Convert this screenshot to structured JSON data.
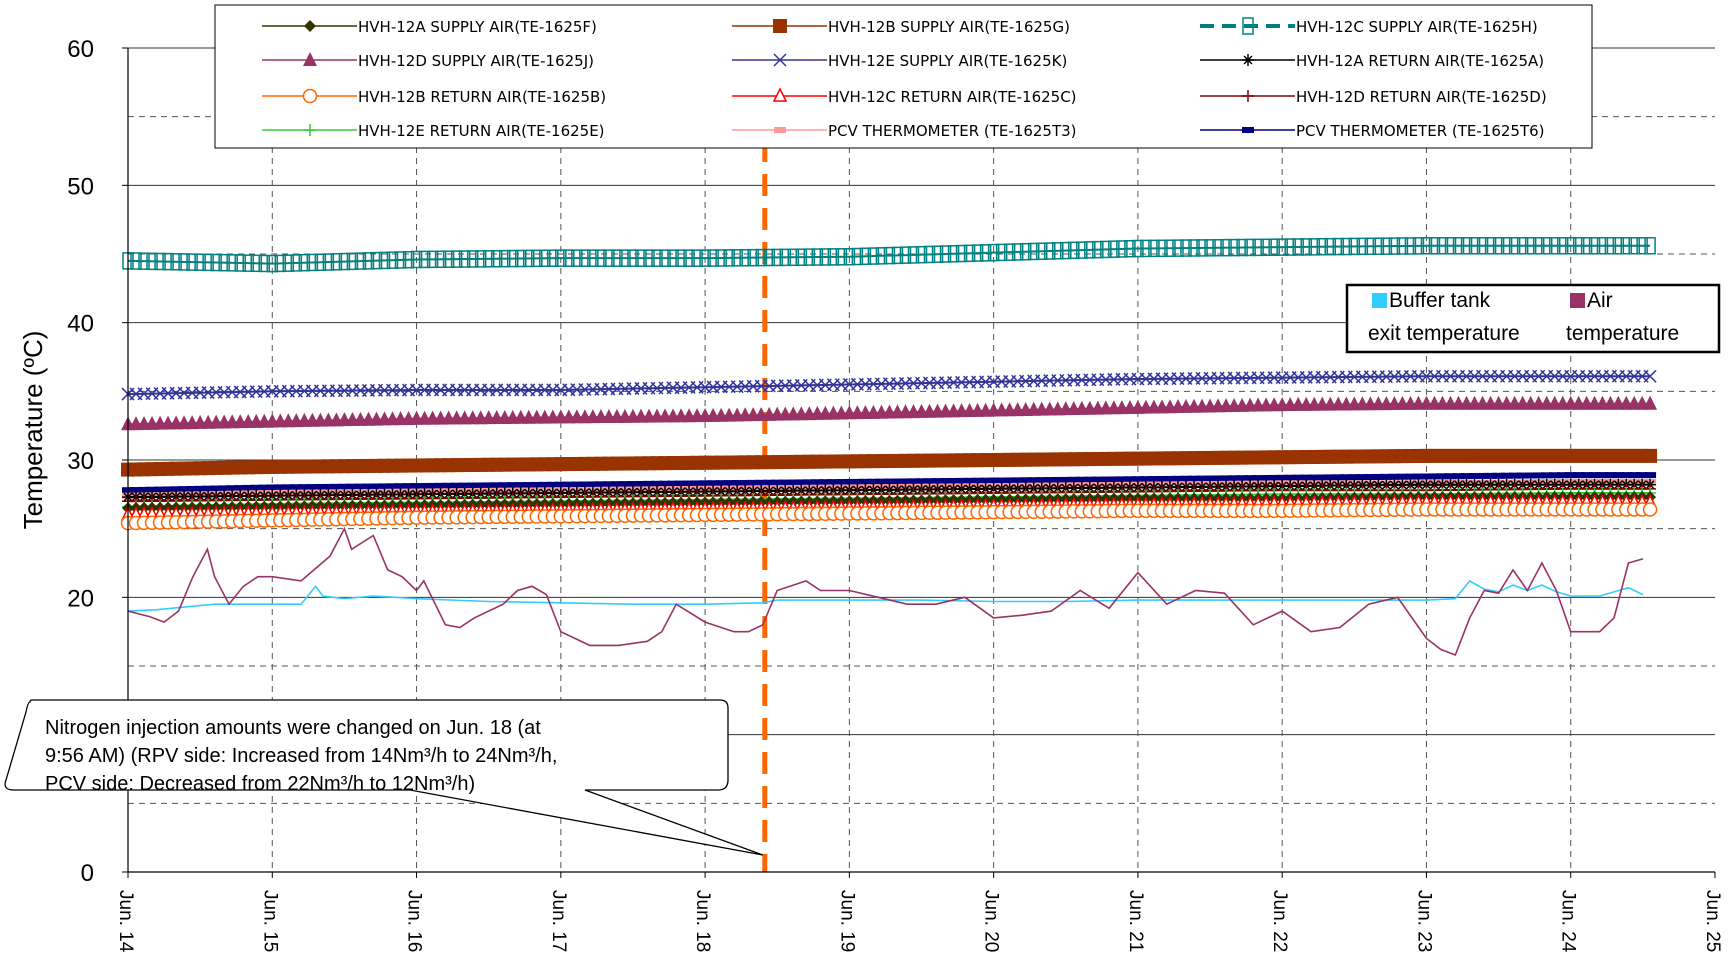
{
  "chart_data": {
    "type": "line",
    "ylabel": "Temperature (ºC)",
    "ylim": [
      0,
      60
    ],
    "y_major_ticks": [
      0,
      10,
      20,
      30,
      40,
      50,
      60
    ],
    "y_tick_labels": [
      "0",
      "",
      "20",
      "30",
      "40",
      "50",
      "60"
    ],
    "xlim": [
      "Jun. 14",
      "Jun. 25"
    ],
    "x_tick_labels": [
      "Jun. 14",
      "Jun. 15",
      "Jun. 16",
      "Jun. 17",
      "Jun. 18",
      "Jun. 19",
      "Jun. 20",
      "Jun. 21",
      "Jun. 22",
      "Jun. 23",
      "Jun. 24",
      "Jun. 25"
    ],
    "grid": {
      "major_y": "solid",
      "minor_y": "dashed",
      "x": "dashed"
    },
    "event_line": {
      "date": "Jun. 18 9:56",
      "color": "#ff6600",
      "style": "dashed"
    },
    "legend": {
      "placement": "top",
      "entries": [
        {
          "label": "HVH-12A SUPPLY AIR(TE-1625F)",
          "color": "#333300",
          "marker": "diamond"
        },
        {
          "label": "HVH-12B SUPPLY AIR(TE-1625G)",
          "color": "#993300",
          "marker": "square"
        },
        {
          "label": "HVH-12C SUPPLY AIR(TE-1625H)",
          "color": "#008080",
          "marker": "open-square",
          "dashed": true
        },
        {
          "label": "HVH-12D SUPPLY AIR(TE-1625J)",
          "color": "#993366",
          "marker": "triangle"
        },
        {
          "label": "HVH-12E SUPPLY AIR(TE-1625K)",
          "color": "#333399",
          "marker": "x"
        },
        {
          "label": "HVH-12A RETURN AIR(TE-1625A)",
          "color": "#000000",
          "marker": "star"
        },
        {
          "label": "HVH-12B RETURN AIR(TE-1625B)",
          "color": "#ff6600",
          "marker": "open-circle"
        },
        {
          "label": "HVH-12C RETURN AIR(TE-1625C)",
          "color": "#ff0000",
          "marker": "open-triangle"
        },
        {
          "label": "HVH-12D RETURN AIR(TE-1625D)",
          "color": "#800000",
          "marker": "plus"
        },
        {
          "label": "HVH-12E RETURN AIR(TE-1625E)",
          "color": "#33cc33",
          "marker": "plus"
        },
        {
          "label": "PCV THERMOMETER (TE-1625T3)",
          "color": "#ff9999",
          "marker": "dash"
        },
        {
          "label": "PCV THERMOMETER (TE-1625T6)",
          "color": "#000080",
          "marker": "dash"
        }
      ]
    },
    "legend2": {
      "placement": "right",
      "entries": [
        {
          "label_line1": "Buffer tank",
          "label_line2": "exit temperature",
          "color": "#33ccff"
        },
        {
          "label_line1": "Air",
          "label_line2": "temperature",
          "color": "#993366"
        }
      ]
    },
    "series": [
      {
        "name": "HVH-12C SUPPLY AIR(TE-1625H)",
        "color": "#008080",
        "x": [
          14.0,
          15.0,
          16.0,
          17.0,
          18.0,
          19.0,
          20.0,
          21.0,
          22.0,
          23.0,
          24.0,
          24.55
        ],
        "y": [
          44.5,
          44.3,
          44.6,
          44.7,
          44.7,
          44.8,
          45.1,
          45.4,
          45.5,
          45.6,
          45.6,
          45.6
        ]
      },
      {
        "name": "HVH-12E SUPPLY AIR(TE-1625K)",
        "color": "#333399",
        "x": [
          14.0,
          15.0,
          16.0,
          17.0,
          18.0,
          19.0,
          20.0,
          21.0,
          22.0,
          23.0,
          24.0,
          24.55
        ],
        "y": [
          34.8,
          35.0,
          35.1,
          35.1,
          35.3,
          35.5,
          35.7,
          35.9,
          36.0,
          36.1,
          36.1,
          36.1
        ]
      },
      {
        "name": "HVH-12D SUPPLY AIR(TE-1625J)",
        "color": "#993366",
        "x": [
          14.0,
          15.0,
          16.0,
          17.0,
          18.0,
          19.0,
          20.0,
          21.0,
          22.0,
          23.0,
          24.0,
          24.55
        ],
        "y": [
          32.6,
          32.8,
          33.0,
          33.1,
          33.2,
          33.4,
          33.6,
          33.8,
          34.0,
          34.1,
          34.1,
          34.1
        ]
      },
      {
        "name": "HVH-12B SUPPLY AIR(TE-1625G)",
        "color": "#993300",
        "x": [
          14.0,
          15.0,
          16.0,
          17.0,
          18.0,
          19.0,
          20.0,
          21.0,
          22.0,
          23.0,
          24.0,
          24.55
        ],
        "y": [
          29.3,
          29.5,
          29.6,
          29.7,
          29.8,
          29.9,
          30.0,
          30.1,
          30.2,
          30.3,
          30.3,
          30.3
        ]
      },
      {
        "name": "PCV THERMOMETER (TE-1625T6)",
        "color": "#000080",
        "x": [
          14.0,
          15.0,
          16.0,
          17.0,
          18.0,
          19.0,
          20.0,
          21.0,
          22.0,
          23.0,
          24.0,
          24.55
        ],
        "y": [
          27.8,
          28.0,
          28.1,
          28.2,
          28.3,
          28.4,
          28.5,
          28.6,
          28.7,
          28.8,
          28.9,
          28.9
        ]
      },
      {
        "name": "PCV THERMOMETER (TE-1625T3)",
        "color": "#ff9999",
        "x": [
          14.0,
          15.0,
          16.0,
          17.0,
          18.0,
          19.0,
          20.0,
          21.0,
          22.0,
          23.0,
          24.0,
          24.55
        ],
        "y": [
          27.4,
          27.6,
          27.7,
          27.8,
          27.9,
          28.0,
          28.1,
          28.2,
          28.3,
          28.3,
          28.4,
          28.4
        ]
      },
      {
        "name": "HVH-12A RETURN AIR(TE-1625A)",
        "color": "#000000",
        "x": [
          14.0,
          15.0,
          16.0,
          17.0,
          18.0,
          19.0,
          20.0,
          21.0,
          22.0,
          23.0,
          24.0,
          24.55
        ],
        "y": [
          27.3,
          27.4,
          27.5,
          27.6,
          27.7,
          27.8,
          27.9,
          28.0,
          28.1,
          28.2,
          28.2,
          28.2
        ]
      },
      {
        "name": "HVH-12D RETURN AIR(TE-1625D)",
        "color": "#800000",
        "x": [
          14.0,
          15.0,
          16.0,
          17.0,
          18.0,
          19.0,
          20.0,
          21.0,
          22.0,
          23.0,
          24.0,
          24.55
        ],
        "y": [
          27.0,
          27.1,
          27.2,
          27.3,
          27.4,
          27.5,
          27.6,
          27.7,
          27.8,
          27.8,
          27.9,
          27.9
        ]
      },
      {
        "name": "HVH-12E RETURN AIR(TE-1625E)",
        "color": "#33cc33",
        "x": [
          14.0,
          15.0,
          16.0,
          17.0,
          18.0,
          19.0,
          20.0,
          21.0,
          22.0,
          23.0,
          24.0,
          24.55
        ],
        "y": [
          26.6,
          26.8,
          26.9,
          27.0,
          27.1,
          27.2,
          27.3,
          27.4,
          27.5,
          27.5,
          27.6,
          27.6
        ]
      },
      {
        "name": "HVH-12A SUPPLY AIR(TE-1625F)",
        "color": "#333300",
        "x": [
          14.0,
          15.0,
          16.0,
          17.0,
          18.0,
          19.0,
          20.0,
          21.0,
          22.0,
          23.0,
          24.0,
          24.55
        ],
        "y": [
          26.5,
          26.6,
          26.7,
          26.8,
          26.9,
          27.0,
          27.1,
          27.2,
          27.2,
          27.3,
          27.3,
          27.3
        ]
      },
      {
        "name": "HVH-12C RETURN AIR(TE-1625C)",
        "color": "#ff0000",
        "x": [
          14.0,
          15.0,
          16.0,
          17.0,
          18.0,
          19.0,
          20.0,
          21.0,
          22.0,
          23.0,
          24.0,
          24.55
        ],
        "y": [
          26.0,
          26.1,
          26.2,
          26.3,
          26.4,
          26.5,
          26.6,
          26.7,
          26.8,
          26.9,
          26.9,
          26.9
        ]
      },
      {
        "name": "HVH-12B RETURN AIR(TE-1625B)",
        "color": "#ff6600",
        "x": [
          14.0,
          15.0,
          16.0,
          17.0,
          18.0,
          19.0,
          20.0,
          21.0,
          22.0,
          23.0,
          24.0,
          24.55
        ],
        "y": [
          25.4,
          25.6,
          25.8,
          25.9,
          26.0,
          26.1,
          26.2,
          26.3,
          26.3,
          26.4,
          26.4,
          26.4
        ]
      },
      {
        "name": "Buffer tank exit temperature",
        "color": "#33ccff",
        "x": [
          14.0,
          14.2,
          14.4,
          14.6,
          14.8,
          15.0,
          15.2,
          15.3,
          15.35,
          15.5,
          15.7,
          16.0,
          16.5,
          17.0,
          17.5,
          18.0,
          18.4,
          18.5,
          19.0,
          19.5,
          20.0,
          20.5,
          21.0,
          21.5,
          22.0,
          22.5,
          23.0,
          23.2,
          23.3,
          23.4,
          23.5,
          23.6,
          23.7,
          23.8,
          23.9,
          24.0,
          24.2,
          24.4,
          24.5
        ],
        "y": [
          19.0,
          19.1,
          19.3,
          19.5,
          19.5,
          19.5,
          19.5,
          20.8,
          20.1,
          19.9,
          20.1,
          19.9,
          19.7,
          19.6,
          19.5,
          19.5,
          19.6,
          19.8,
          19.8,
          19.8,
          19.7,
          19.7,
          19.8,
          19.8,
          19.8,
          19.8,
          19.8,
          19.9,
          21.2,
          20.6,
          20.4,
          20.9,
          20.5,
          20.9,
          20.4,
          20.1,
          20.1,
          20.7,
          20.2
        ]
      },
      {
        "name": "Air temperature",
        "color": "#993366",
        "x": [
          14.0,
          14.15,
          14.25,
          14.35,
          14.45,
          14.55,
          14.6,
          14.7,
          14.8,
          14.9,
          15.0,
          15.2,
          15.4,
          15.5,
          15.55,
          15.7,
          15.8,
          15.9,
          16.0,
          16.05,
          16.2,
          16.3,
          16.4,
          16.6,
          16.7,
          16.8,
          16.9,
          17.0,
          17.2,
          17.4,
          17.6,
          17.7,
          17.8,
          18.0,
          18.2,
          18.3,
          18.4,
          18.5,
          18.7,
          18.8,
          19.0,
          19.2,
          19.4,
          19.6,
          19.8,
          20.0,
          20.2,
          20.4,
          20.6,
          20.8,
          21.0,
          21.2,
          21.4,
          21.6,
          21.8,
          22.0,
          22.2,
          22.4,
          22.6,
          22.8,
          23.0,
          23.1,
          23.2,
          23.3,
          23.4,
          23.5,
          23.6,
          23.7,
          23.8,
          23.9,
          24.0,
          24.2,
          24.3,
          24.4,
          24.5
        ],
        "y": [
          19.0,
          18.6,
          18.2,
          19.0,
          21.5,
          23.5,
          21.5,
          19.5,
          20.8,
          21.5,
          21.5,
          21.2,
          23.0,
          25.0,
          23.5,
          24.5,
          22.0,
          21.5,
          20.5,
          21.2,
          18.0,
          17.8,
          18.5,
          19.5,
          20.5,
          20.8,
          20.2,
          17.5,
          16.5,
          16.5,
          16.8,
          17.5,
          19.5,
          18.2,
          17.5,
          17.5,
          18.0,
          20.5,
          21.2,
          20.5,
          20.5,
          20.0,
          19.5,
          19.5,
          20.0,
          18.5,
          18.7,
          19.0,
          20.5,
          19.2,
          21.8,
          19.5,
          20.5,
          20.3,
          18.0,
          19.0,
          17.5,
          17.8,
          19.5,
          20.0,
          17.0,
          16.2,
          15.8,
          18.5,
          20.5,
          20.3,
          22.0,
          20.5,
          22.5,
          20.5,
          17.5,
          17.5,
          18.5,
          22.5,
          22.8
        ]
      }
    ],
    "callout_lines": [
      "Nitrogen injection amounts were changed on Jun. 18 (at",
      "9:56 AM) (RPV side: Increased from 14Nm³/h to 24Nm³/h,",
      "PCV side: Decreased from 22Nm³/h to 12Nm³/h)"
    ]
  }
}
